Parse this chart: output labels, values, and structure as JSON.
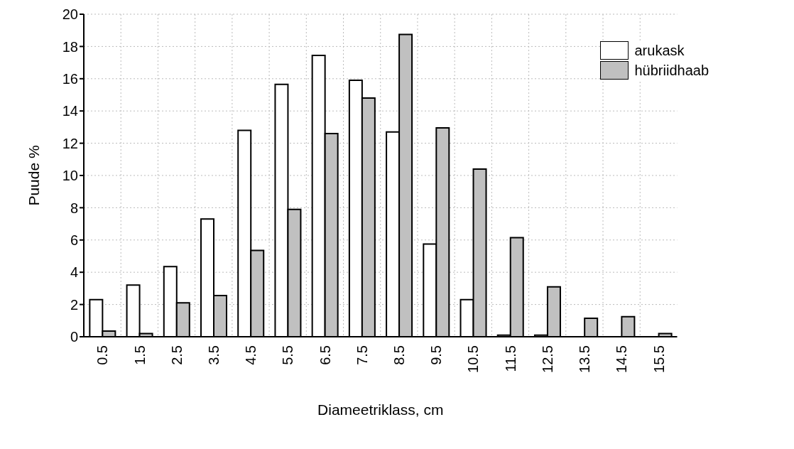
{
  "chart_data": {
    "type": "bar",
    "xlabel": "Diameetriklass, cm",
    "ylabel": "Puude %",
    "categories": [
      "0.5",
      "1.5",
      "2.5",
      "3.5",
      "4.5",
      "5.5",
      "6.5",
      "7.5",
      "8.5",
      "9.5",
      "10.5",
      "11.5",
      "12.5",
      "13.5",
      "14.5",
      "15.5"
    ],
    "series": [
      {
        "name": "arukask",
        "color": "#ffffff",
        "values": [
          2.3,
          3.2,
          4.35,
          7.3,
          12.8,
          15.65,
          17.45,
          15.9,
          12.7,
          5.75,
          2.3,
          0.1,
          0.1,
          0,
          0,
          0
        ]
      },
      {
        "name": "hübriidhaab",
        "color": "#c0c0c0",
        "values": [
          0.35,
          0.2,
          2.1,
          2.55,
          5.35,
          7.9,
          12.6,
          14.8,
          18.75,
          12.95,
          10.4,
          6.15,
          3.1,
          1.15,
          1.25,
          0.2
        ]
      }
    ],
    "ylim": [
      0,
      20
    ],
    "yticks": [
      0,
      2,
      4,
      6,
      8,
      10,
      12,
      14,
      16,
      18,
      20
    ],
    "grid": true,
    "legend": "top right"
  }
}
